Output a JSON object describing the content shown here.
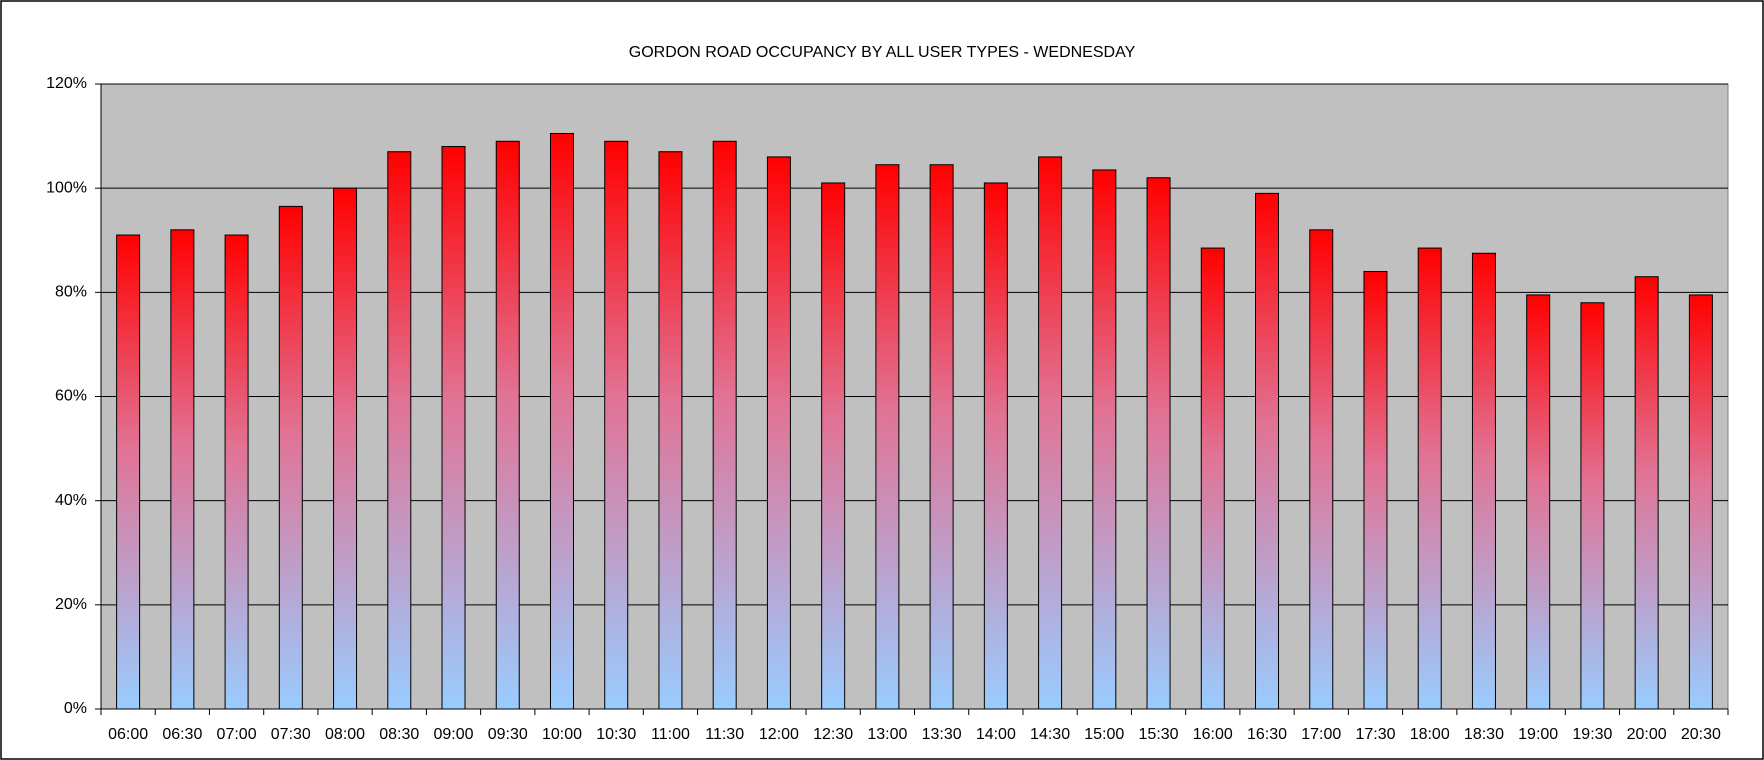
{
  "chart_data": {
    "type": "bar",
    "title": "GORDON ROAD OCCUPANCY BY ALL USER TYPES  - WEDNESDAY",
    "categories": [
      "06:00",
      "06:30",
      "07:00",
      "07:30",
      "08:00",
      "08:30",
      "09:00",
      "09:30",
      "10:00",
      "10:30",
      "11:00",
      "11:30",
      "12:00",
      "12:30",
      "13:00",
      "13:30",
      "14:00",
      "14:30",
      "15:00",
      "15:30",
      "16:00",
      "16:30",
      "17:00",
      "17:30",
      "18:00",
      "18:30",
      "19:00",
      "19:30",
      "20:00",
      "20:30"
    ],
    "values": [
      91,
      92,
      91,
      96.5,
      100,
      107,
      108,
      109,
      110.5,
      109,
      107,
      109,
      106,
      101,
      104.5,
      104.5,
      101,
      106,
      103.5,
      102,
      88.5,
      99,
      92,
      84,
      88.5,
      87.5,
      79.5,
      78,
      83,
      79.5
    ],
    "gradient": [
      "#ff0000",
      "#e17395",
      "#99ccff"
    ],
    "plot_background": "#c0c0c0",
    "ylim": [
      0,
      120
    ],
    "yticks": [
      {
        "value": 0,
        "label": "0%"
      },
      {
        "value": 20,
        "label": "20%"
      },
      {
        "value": 40,
        "label": "40%"
      },
      {
        "value": 60,
        "label": "60%"
      },
      {
        "value": 80,
        "label": "80%"
      },
      {
        "value": 100,
        "label": "100%"
      },
      {
        "value": 120,
        "label": "120%"
      }
    ],
    "grid": true
  }
}
